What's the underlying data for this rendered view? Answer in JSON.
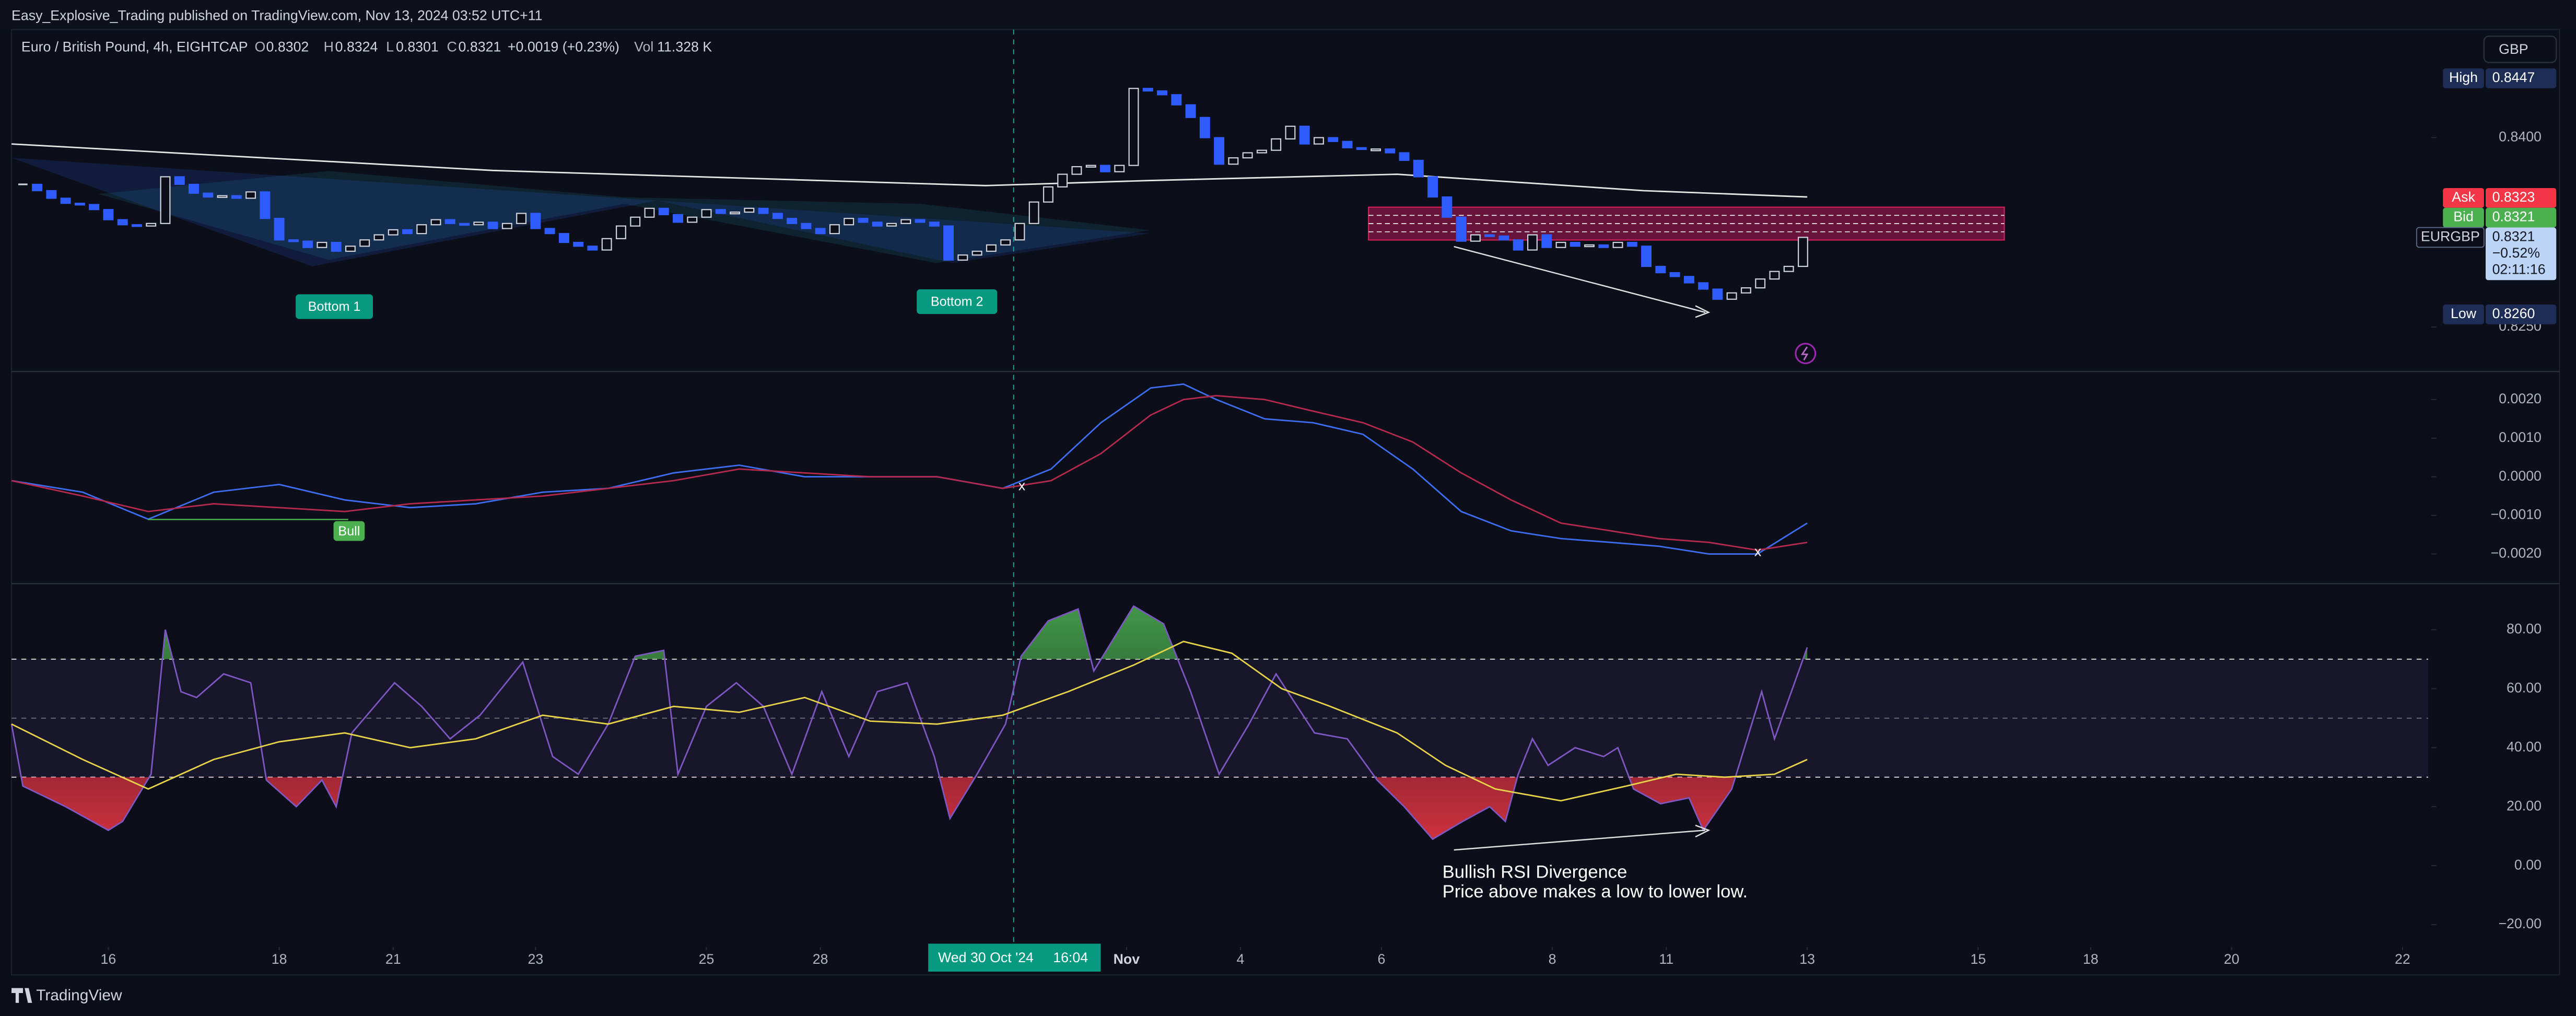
{
  "header": {
    "text": "Easy_Explosive_Trading published on TradingView.com, Nov 13, 2024 03:52 UTC+11"
  },
  "legend": {
    "title": "Euro / British Pound, 4h, EIGHTCAP",
    "fields": [
      {
        "key": "O",
        "value": "0.8302"
      },
      {
        "key": "H",
        "value": "0.8324"
      },
      {
        "key": "L",
        "value": "0.8301"
      },
      {
        "key": "C",
        "value": "0.8321"
      }
    ],
    "change": "+0.0019 (+0.23%)",
    "volume_key": "Vol",
    "volume": "11.328 K"
  },
  "currency": "GBP",
  "footer": "TradingView",
  "chart_data": [
    {
      "type": "candlestick",
      "x": [
        0,
        1,
        2,
        3,
        4,
        5,
        6,
        7,
        8,
        9,
        10,
        11,
        12,
        13,
        14,
        15,
        16,
        17,
        18,
        19,
        20,
        21,
        22,
        23,
        24,
        25,
        26,
        27,
        28,
        29,
        30,
        31,
        32,
        33,
        34,
        35,
        36,
        37,
        38,
        39,
        40,
        41,
        42,
        43,
        44,
        45,
        46,
        47,
        48,
        49,
        50,
        51,
        52,
        53,
        54,
        55,
        56,
        57,
        58,
        59,
        60,
        61,
        62,
        63,
        64,
        65,
        66,
        67,
        68,
        69,
        70,
        71,
        72,
        73,
        74,
        75,
        76,
        77,
        78,
        79,
        80,
        81,
        82,
        83,
        84,
        85,
        86,
        87,
        88,
        89,
        90,
        91,
        92,
        93,
        94,
        95,
        96,
        97,
        98,
        99,
        100,
        101,
        102,
        103,
        104,
        105,
        106,
        107,
        108,
        109,
        110,
        111,
        112,
        113,
        114,
        115,
        116,
        117,
        118,
        119,
        120,
        121,
        122,
        123,
        124,
        125
      ],
      "close": [
        0.8363,
        0.8358,
        0.8352,
        0.8348,
        0.8347,
        0.8343,
        0.8335,
        0.8331,
        0.833,
        0.8332,
        0.8369,
        0.8363,
        0.8356,
        0.8353,
        0.8354,
        0.8352,
        0.8357,
        0.8336,
        0.8319,
        0.8318,
        0.8313,
        0.8317,
        0.831,
        0.8314,
        0.8319,
        0.8323,
        0.8327,
        0.8324,
        0.8331,
        0.8335,
        0.8332,
        0.8331,
        0.8333,
        0.8328,
        0.8332,
        0.834,
        0.8328,
        0.8324,
        0.8317,
        0.8314,
        0.8311,
        0.832,
        0.833,
        0.8337,
        0.8344,
        0.8339,
        0.8333,
        0.8337,
        0.8343,
        0.834,
        0.8341,
        0.8344,
        0.834,
        0.8336,
        0.8332,
        0.8328,
        0.8324,
        0.8331,
        0.8336,
        0.8333,
        0.833,
        0.8332,
        0.8335,
        0.8333,
        0.833,
        0.8303,
        0.8307,
        0.831,
        0.8315,
        0.8319,
        0.8332,
        0.8349,
        0.8361,
        0.8371,
        0.8377,
        0.8378,
        0.8373,
        0.8378,
        0.8439,
        0.8437,
        0.8434,
        0.8426,
        0.8416,
        0.84,
        0.8379,
        0.8384,
        0.8388,
        0.839,
        0.8399,
        0.8409,
        0.8395,
        0.84,
        0.8397,
        0.8392,
        0.8391,
        0.8391,
        0.8388,
        0.8382,
        0.8369,
        0.8353,
        0.8337,
        0.8318,
        0.8323,
        0.8322,
        0.8319,
        0.8311,
        0.8323,
        0.8313,
        0.8317,
        0.8314,
        0.8315,
        0.8313,
        0.8317,
        0.8314,
        0.8298,
        0.8293,
        0.829,
        0.8285,
        0.828,
        0.8272,
        0.8277,
        0.8281,
        0.8288,
        0.8294,
        0.8298,
        0.8321
      ],
      "up_color": "#d1d4dc",
      "down_color": "#2f5cff",
      "xlim": [
        -0.8,
        168.9
      ],
      "ylim": [
        0.8216,
        0.8483
      ],
      "yticks": [
        {
          "value": 0.84,
          "label": "0.8400"
        },
        {
          "value": 0.825,
          "label": "0.8250"
        }
      ],
      "moving_average": {
        "color": "#e6e6e6",
        "x": [
          -0.8,
          33,
          67.6,
          79,
          96.5,
          113.8,
          125.3
        ],
        "values": [
          0.8395,
          0.8374,
          0.8362,
          0.8366,
          0.8371,
          0.8358,
          0.8353
        ]
      },
      "price_labels": [
        {
          "name": "High",
          "label": "0.8447",
          "value": 0.8447,
          "color": "#1e2d55"
        },
        {
          "name": "Ask",
          "label": "0.8323",
          "value": 0.8323,
          "color": "#f23645"
        },
        {
          "name": "Bid",
          "label": "0.8321",
          "value": 0.8321,
          "color": "#4caf50"
        },
        {
          "name": "Low",
          "label": "0.8260",
          "value": 0.826,
          "color": "#1e2d55"
        }
      ],
      "last_price": {
        "name": "EURGBP",
        "label": "0.8321",
        "value": 0.8321,
        "change": "−0.52%",
        "countdown": "02:11:16"
      },
      "annotations": [
        "Bottom 1",
        "Bottom 2"
      ]
    },
    {
      "type": "line",
      "xlim": [
        -0.8,
        168.9
      ],
      "ylim": [
        -0.00264,
        0.00264
      ],
      "yticks": [
        {
          "value": 0.002,
          "label": "0.0020"
        },
        {
          "value": 0.001,
          "label": "0.0010"
        },
        {
          "value": 0,
          "label": "0.0000"
        },
        {
          "value": -0.001,
          "label": "−0.0010"
        },
        {
          "value": -0.002,
          "label": "−0.0020"
        }
      ],
      "series": [
        {
          "color": "#3d6df2",
          "x": [
            -0.8,
            4.2,
            8.8,
            13.4,
            18,
            22.6,
            27.2,
            31.8,
            36.5,
            41.1,
            45.7,
            50.3,
            54.9,
            59.5,
            64.2,
            68.8,
            72.2,
            75.7,
            79.2,
            81.5,
            83.8,
            87.2,
            90.6,
            94.1,
            97.6,
            101,
            104.5,
            108,
            111.5,
            114.9,
            118.4,
            121.8,
            125.3
          ],
          "values": [
            -0.0001,
            -0.0004,
            -0.0011,
            -0.0004,
            -0.0002,
            -0.0006,
            -0.0008,
            -0.0007,
            -0.0004,
            -0.0003,
            0.0001,
            0.0003,
            0,
            0,
            0,
            -0.0003,
            0.0002,
            0.0014,
            0.0023,
            0.0024,
            0.002,
            0.0015,
            0.0014,
            0.0011,
            0.0002,
            -0.0009,
            -0.0014,
            -0.0016,
            -0.0017,
            -0.0018,
            -0.002,
            -0.002,
            -0.0012
          ]
        },
        {
          "color": "#b5294f",
          "x": [
            -0.8,
            4.2,
            8.8,
            13.4,
            18,
            22.6,
            27.2,
            31.8,
            36.5,
            41.1,
            45.7,
            50.3,
            54.9,
            59.5,
            64.2,
            68.8,
            72.2,
            75.7,
            79.2,
            81.5,
            83.8,
            87.2,
            90.6,
            94.1,
            97.6,
            101,
            104.5,
            108,
            111.5,
            114.9,
            118.4,
            121.8,
            125.3
          ],
          "values": [
            -0.0001,
            -0.0005,
            -0.0009,
            -0.0007,
            -0.0008,
            -0.0009,
            -0.0007,
            -0.0006,
            -0.0005,
            -0.0003,
            -0.0001,
            0.0002,
            0.0001,
            0,
            0,
            -0.0003,
            -0.0001,
            0.0006,
            0.0016,
            0.002,
            0.0021,
            0.002,
            0.0017,
            0.0014,
            0.0009,
            0.0001,
            -0.0006,
            -0.0012,
            -0.0014,
            -0.0016,
            -0.0017,
            -0.0019,
            -0.0017
          ]
        }
      ],
      "markers": [
        "x",
        "x"
      ],
      "annotations": [
        "Bull"
      ]
    },
    {
      "type": "line",
      "xlim": [
        -0.8,
        168.9
      ],
      "ylim": [
        -27,
        94.5
      ],
      "yticks": [
        {
          "value": 80,
          "label": "80.00"
        },
        {
          "value": 60,
          "label": "60.00"
        },
        {
          "value": 40,
          "label": "40.00"
        },
        {
          "value": 20,
          "label": "20.00"
        },
        {
          "value": 0,
          "label": "0.00"
        },
        {
          "value": -20,
          "label": "−20.00"
        }
      ],
      "xticks": [
        {
          "value": 6,
          "label": "16"
        },
        {
          "value": 18,
          "label": "18"
        },
        {
          "value": 26,
          "label": "21"
        },
        {
          "value": 36,
          "label": "23"
        },
        {
          "value": 48,
          "label": "25"
        },
        {
          "value": 56,
          "label": "28"
        },
        {
          "value": 77.5,
          "label": "Nov"
        },
        {
          "value": 85.5,
          "label": "4"
        },
        {
          "value": 95.4,
          "label": "6"
        },
        {
          "value": 107.4,
          "label": "8"
        },
        {
          "value": 115.4,
          "label": "11"
        },
        {
          "value": 125.3,
          "label": "13"
        },
        {
          "value": 137.3,
          "label": "15"
        },
        {
          "value": 145.2,
          "label": "18"
        },
        {
          "value": 155.1,
          "label": "20"
        },
        {
          "value": 167.1,
          "label": "22"
        }
      ],
      "levels": [
        70,
        50,
        30
      ],
      "band_color": "#7e57c2",
      "series": [
        {
          "color": "#7e57c2",
          "x": [
            -0.8,
            0,
            3,
            6,
            7,
            9,
            10,
            11.1,
            12.2,
            14.1,
            16,
            17.1,
            19.2,
            21,
            22,
            23.1,
            26.1,
            28,
            30,
            32.1,
            35.1,
            37.2,
            39,
            41.1,
            43,
            45,
            46,
            48,
            50.1,
            52,
            54,
            56.1,
            58,
            60,
            62.1,
            64,
            65.1,
            67,
            69,
            70.1,
            72,
            74.1,
            75.2,
            78,
            80.1,
            82,
            84,
            86.1,
            88,
            90.7,
            93,
            95.1,
            97,
            99,
            101.1,
            103,
            104.1,
            105,
            106,
            107.1,
            109,
            111,
            112,
            113.1,
            115,
            117,
            118,
            120,
            122.1,
            123,
            125.3
          ],
          "values": [
            48,
            27,
            20,
            12,
            15,
            31,
            80,
            59,
            57,
            65,
            62,
            29,
            20,
            29,
            20,
            45,
            62,
            54,
            43,
            51,
            69,
            37,
            31,
            48,
            71,
            73,
            31,
            54,
            62,
            54,
            31,
            59,
            37,
            59,
            62,
            37,
            16,
            31,
            48,
            71,
            83,
            87,
            66,
            88,
            82,
            59,
            31,
            48,
            65,
            45,
            43,
            29,
            20,
            9,
            15,
            20,
            15,
            31,
            43,
            34,
            40,
            37,
            40,
            26,
            21,
            23,
            12,
            26,
            59,
            43,
            74
          ]
        },
        {
          "color": "#e8d449",
          "x": [
            -0.8,
            4.2,
            8.8,
            13.4,
            18,
            22.6,
            27.2,
            31.8,
            36.5,
            41.1,
            45.7,
            50.3,
            54.9,
            59.5,
            64.2,
            68.8,
            73.4,
            78,
            81.5,
            84.9,
            88.4,
            91.8,
            96.5,
            99.9,
            103.4,
            108,
            112.6,
            116.1,
            119.5,
            123,
            125.3
          ],
          "values": [
            48,
            36,
            26,
            36,
            42,
            45,
            40,
            43,
            51,
            48,
            54,
            52,
            57,
            49,
            48,
            51,
            59,
            68,
            76,
            72,
            60,
            54,
            45,
            34,
            26,
            22,
            27,
            31,
            30,
            31,
            36
          ]
        }
      ],
      "crosshair_label": [
        "Wed 30 Oct '24",
        "16:04"
      ],
      "annotations": [
        "Bullish RSI Divergence",
        "Price above makes a low to lower low."
      ]
    }
  ]
}
